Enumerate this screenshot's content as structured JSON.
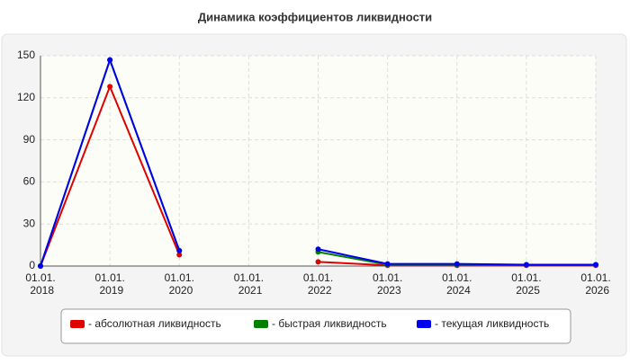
{
  "chart_data": {
    "type": "line",
    "title": "Динамика коэффициентов ликвидности",
    "categories": [
      "01.01. 2018",
      "01.01. 2019",
      "01.01. 2020",
      "01.01. 2021",
      "01.01. 2022",
      "01.01. 2023",
      "01.01. 2024",
      "01.01. 2025",
      "01.01. 2026"
    ],
    "series": [
      {
        "name": "- абсолютная ликвидность",
        "color": "#e00000",
        "values": [
          0,
          128,
          8,
          null,
          3,
          0.5,
          0.5,
          0.5,
          0.5
        ]
      },
      {
        "name": "- быстрая ликвидность",
        "color": "#008000",
        "values": [
          0,
          147,
          11,
          null,
          10,
          1,
          1,
          1,
          1
        ]
      },
      {
        "name": "- текущая ликвидность",
        "color": "#0000ee",
        "values": [
          0,
          147,
          11,
          null,
          12,
          1.5,
          1.5,
          1,
          1
        ]
      }
    ],
    "ylim": [
      0,
      150
    ],
    "yticks": [
      0,
      30,
      60,
      90,
      120,
      150
    ],
    "grid": true,
    "legend": "bottom"
  }
}
